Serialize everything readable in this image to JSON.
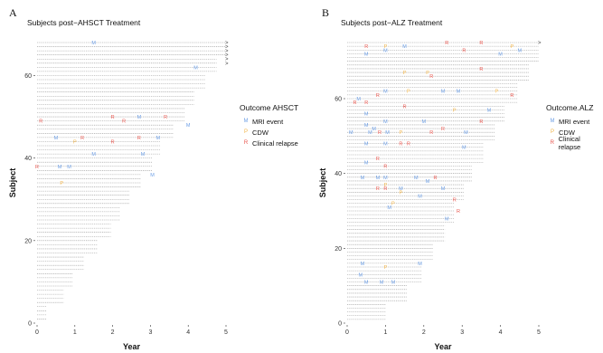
{
  "chart_data": [
    {
      "type": "scatter",
      "panel": "A",
      "title": "Subjects post−AHSCT Treatment",
      "xlabel": "Year",
      "ylabel": "Subject",
      "xlim": [
        0,
        5
      ],
      "ylim": [
        0,
        68
      ],
      "x_ticks": [
        0,
        1,
        2,
        3,
        4,
        5
      ],
      "y_ticks": [
        0,
        20,
        40,
        60
      ],
      "legend_title": "Outcome AHSCT",
      "legend": [
        {
          "key": "M",
          "label": "MRI event",
          "color": "#6fa0e6"
        },
        {
          "key": "P",
          "label": "CDW",
          "color": "#f0b347"
        },
        {
          "key": "R",
          "label": "Clinical relapse",
          "color": "#e8554d"
        }
      ],
      "follow_up_max_years": [
        5.0,
        4.75,
        4.45,
        4.15,
        3.9,
        3.6,
        3.25,
        3.05,
        2.75,
        2.45,
        2.2,
        1.95,
        1.6,
        1.25,
        0.95,
        0.7,
        0.25
      ],
      "censored_subjects": [
        63,
        64,
        65,
        66,
        67,
        68
      ],
      "events": [
        {
          "subject": 68,
          "year": 1.5,
          "type": "M"
        },
        {
          "subject": 62,
          "year": 4.2,
          "type": "M"
        },
        {
          "subject": 50,
          "year": 2.0,
          "type": "R"
        },
        {
          "subject": 50,
          "year": 2.7,
          "type": "M"
        },
        {
          "subject": 50,
          "year": 3.4,
          "type": "R"
        },
        {
          "subject": 49,
          "year": 0.1,
          "type": "R"
        },
        {
          "subject": 49,
          "year": 2.3,
          "type": "R"
        },
        {
          "subject": 48,
          "year": 4.0,
          "type": "M"
        },
        {
          "subject": 45,
          "year": 0.5,
          "type": "M"
        },
        {
          "subject": 45,
          "year": 1.2,
          "type": "R"
        },
        {
          "subject": 45,
          "year": 2.7,
          "type": "R"
        },
        {
          "subject": 45,
          "year": 3.2,
          "type": "M"
        },
        {
          "subject": 44,
          "year": 1.0,
          "type": "P"
        },
        {
          "subject": 44,
          "year": 2.0,
          "type": "R"
        },
        {
          "subject": 41,
          "year": 1.5,
          "type": "M"
        },
        {
          "subject": 41,
          "year": 2.8,
          "type": "M"
        },
        {
          "subject": 38,
          "year": 0.0,
          "type": "R"
        },
        {
          "subject": 38,
          "year": 0.6,
          "type": "M"
        },
        {
          "subject": 38,
          "year": 0.85,
          "type": "M"
        },
        {
          "subject": 36,
          "year": 3.05,
          "type": "M"
        },
        {
          "subject": 34,
          "year": 0.65,
          "type": "P"
        }
      ]
    },
    {
      "type": "scatter",
      "panel": "B",
      "title": "Subjects post−ALZ Treatment",
      "xlabel": "Year",
      "ylabel": "Subject",
      "xlim": [
        0,
        5
      ],
      "ylim": [
        0,
        75
      ],
      "x_ticks": [
        0,
        1,
        2,
        3,
        4,
        5
      ],
      "y_ticks": [
        0,
        20,
        40,
        60
      ],
      "legend_title": "Outcome.ALZ",
      "legend": [
        {
          "key": "M",
          "label": "MRI event",
          "color": "#6fa0e6"
        },
        {
          "key": "P",
          "label": "CDW",
          "color": "#f0b347"
        },
        {
          "key": "R",
          "label": "Clinical relapse",
          "color": "#e8554d"
        }
      ],
      "follow_up_max_years": [
        5.0,
        4.75,
        4.45,
        4.1,
        3.85,
        3.55,
        3.25,
        3.05,
        2.8,
        2.55,
        2.25,
        1.95,
        1.55,
        1.0
      ],
      "censored_subjects": [
        75
      ],
      "events": [
        {
          "subject": 75,
          "year": 2.6,
          "type": "R"
        },
        {
          "subject": 75,
          "year": 3.5,
          "type": "R"
        },
        {
          "subject": 74,
          "year": 0.5,
          "type": "R"
        },
        {
          "subject": 74,
          "year": 1.0,
          "type": "P"
        },
        {
          "subject": 74,
          "year": 1.5,
          "type": "M"
        },
        {
          "subject": 74,
          "year": 4.3,
          "type": "P"
        },
        {
          "subject": 73,
          "year": 1.0,
          "type": "M"
        },
        {
          "subject": 73,
          "year": 3.05,
          "type": "R"
        },
        {
          "subject": 73,
          "year": 4.5,
          "type": "M"
        },
        {
          "subject": 72,
          "year": 0.5,
          "type": "M"
        },
        {
          "subject": 72,
          "year": 4.0,
          "type": "M"
        },
        {
          "subject": 68,
          "year": 3.5,
          "type": "R"
        },
        {
          "subject": 67,
          "year": 1.5,
          "type": "P"
        },
        {
          "subject": 67,
          "year": 2.1,
          "type": "P"
        },
        {
          "subject": 66,
          "year": 2.2,
          "type": "R"
        },
        {
          "subject": 62,
          "year": 1.0,
          "type": "M"
        },
        {
          "subject": 62,
          "year": 1.6,
          "type": "P"
        },
        {
          "subject": 62,
          "year": 2.5,
          "type": "M"
        },
        {
          "subject": 62,
          "year": 2.9,
          "type": "M"
        },
        {
          "subject": 62,
          "year": 3.9,
          "type": "P"
        },
        {
          "subject": 61,
          "year": 0.8,
          "type": "R"
        },
        {
          "subject": 61,
          "year": 4.3,
          "type": "R"
        },
        {
          "subject": 60,
          "year": 0.3,
          "type": "M"
        },
        {
          "subject": 59,
          "year": 0.2,
          "type": "R"
        },
        {
          "subject": 59,
          "year": 0.5,
          "type": "R"
        },
        {
          "subject": 58,
          "year": 1.5,
          "type": "R"
        },
        {
          "subject": 57,
          "year": 2.8,
          "type": "P"
        },
        {
          "subject": 57,
          "year": 3.7,
          "type": "M"
        },
        {
          "subject": 56,
          "year": 0.5,
          "type": "M"
        },
        {
          "subject": 54,
          "year": 1.0,
          "type": "M"
        },
        {
          "subject": 54,
          "year": 2.0,
          "type": "M"
        },
        {
          "subject": 54,
          "year": 3.5,
          "type": "R"
        },
        {
          "subject": 53,
          "year": 0.5,
          "type": "M"
        },
        {
          "subject": 52,
          "year": 0.7,
          "type": "M"
        },
        {
          "subject": 52,
          "year": 2.5,
          "type": "R"
        },
        {
          "subject": 51,
          "year": 0.1,
          "type": "M"
        },
        {
          "subject": 51,
          "year": 0.6,
          "type": "M"
        },
        {
          "subject": 51,
          "year": 0.85,
          "type": "R"
        },
        {
          "subject": 51,
          "year": 1.05,
          "type": "M"
        },
        {
          "subject": 51,
          "year": 1.4,
          "type": "P"
        },
        {
          "subject": 51,
          "year": 2.2,
          "type": "R"
        },
        {
          "subject": 51,
          "year": 3.1,
          "type": "M"
        },
        {
          "subject": 48,
          "year": 0.5,
          "type": "M"
        },
        {
          "subject": 48,
          "year": 1.0,
          "type": "M"
        },
        {
          "subject": 48,
          "year": 1.4,
          "type": "R"
        },
        {
          "subject": 48,
          "year": 1.6,
          "type": "R"
        },
        {
          "subject": 47,
          "year": 3.05,
          "type": "M"
        },
        {
          "subject": 44,
          "year": 0.8,
          "type": "R"
        },
        {
          "subject": 43,
          "year": 0.5,
          "type": "M"
        },
        {
          "subject": 42,
          "year": 1.0,
          "type": "R"
        },
        {
          "subject": 39,
          "year": 0.4,
          "type": "M"
        },
        {
          "subject": 39,
          "year": 0.8,
          "type": "M"
        },
        {
          "subject": 39,
          "year": 1.0,
          "type": "M"
        },
        {
          "subject": 39,
          "year": 1.8,
          "type": "M"
        },
        {
          "subject": 39,
          "year": 2.3,
          "type": "R"
        },
        {
          "subject": 38,
          "year": 2.1,
          "type": "M"
        },
        {
          "subject": 37,
          "year": 1.0,
          "type": "P"
        },
        {
          "subject": 36,
          "year": 0.8,
          "type": "R"
        },
        {
          "subject": 36,
          "year": 1.0,
          "type": "R"
        },
        {
          "subject": 36,
          "year": 1.4,
          "type": "M"
        },
        {
          "subject": 36,
          "year": 2.5,
          "type": "M"
        },
        {
          "subject": 35,
          "year": 1.4,
          "type": "P"
        },
        {
          "subject": 34,
          "year": 1.9,
          "type": "M"
        },
        {
          "subject": 33,
          "year": 2.8,
          "type": "R"
        },
        {
          "subject": 32,
          "year": 1.2,
          "type": "P"
        },
        {
          "subject": 31,
          "year": 1.1,
          "type": "M"
        },
        {
          "subject": 30,
          "year": 2.9,
          "type": "R"
        },
        {
          "subject": 28,
          "year": 2.6,
          "type": "M"
        },
        {
          "subject": 16,
          "year": 0.4,
          "type": "M"
        },
        {
          "subject": 16,
          "year": 1.9,
          "type": "M"
        },
        {
          "subject": 15,
          "year": 1.0,
          "type": "P"
        },
        {
          "subject": 13,
          "year": 0.35,
          "type": "M"
        },
        {
          "subject": 11,
          "year": 0.5,
          "type": "M"
        },
        {
          "subject": 11,
          "year": 0.9,
          "type": "M"
        },
        {
          "subject": 11,
          "year": 1.2,
          "type": "M"
        }
      ]
    }
  ]
}
